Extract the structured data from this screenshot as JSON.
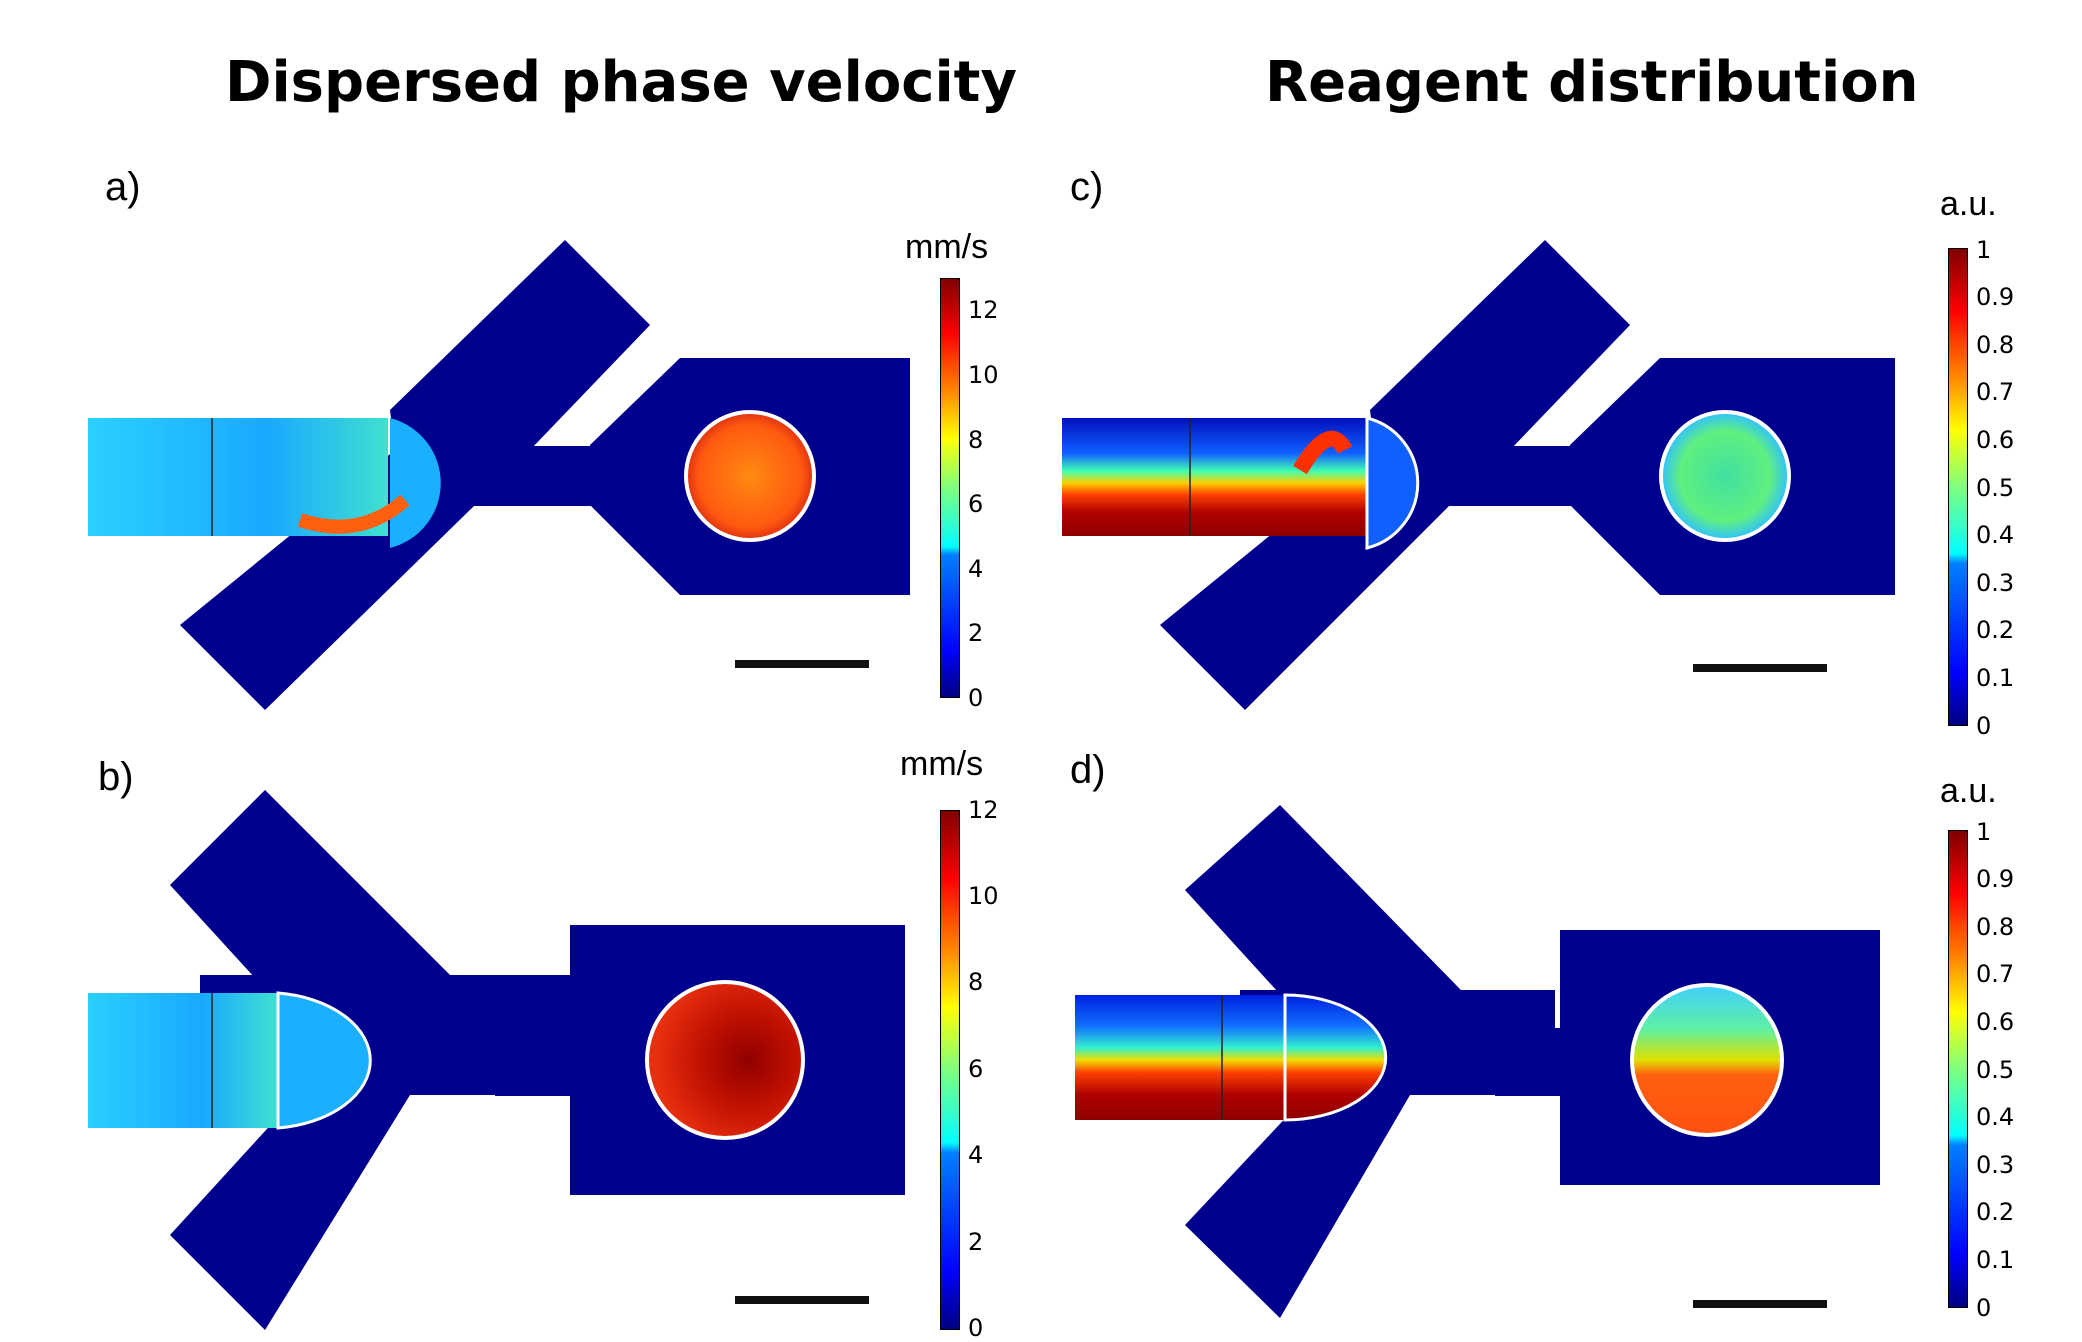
{
  "titles": {
    "left": "Dispersed phase velocity",
    "right": "Reagent distribution"
  },
  "panels": {
    "a": {
      "label": "a)",
      "unit": "mm/s",
      "ticks": [
        "12",
        "10",
        "8",
        "6",
        "4",
        "2",
        "0"
      ]
    },
    "b": {
      "label": "b)",
      "unit": "mm/s",
      "ticks": [
        "12",
        "10",
        "8",
        "6",
        "4",
        "2",
        "0"
      ]
    },
    "c": {
      "label": "c)",
      "unit": "a.u.",
      "ticks": [
        "1",
        "0.9",
        "0.8",
        "0.7",
        "0.6",
        "0.5",
        "0.4",
        "0.3",
        "0.2",
        "0.1",
        "0"
      ]
    },
    "d": {
      "label": "d)",
      "unit": "a.u.",
      "ticks": [
        "1",
        "0.9",
        "0.8",
        "0.7",
        "0.6",
        "0.5",
        "0.4",
        "0.3",
        "0.2",
        "0.1",
        "0"
      ]
    }
  },
  "colors": {
    "channel": "#00008f",
    "droplet_high": "#e03a10",
    "scalebar": "#111111"
  }
}
